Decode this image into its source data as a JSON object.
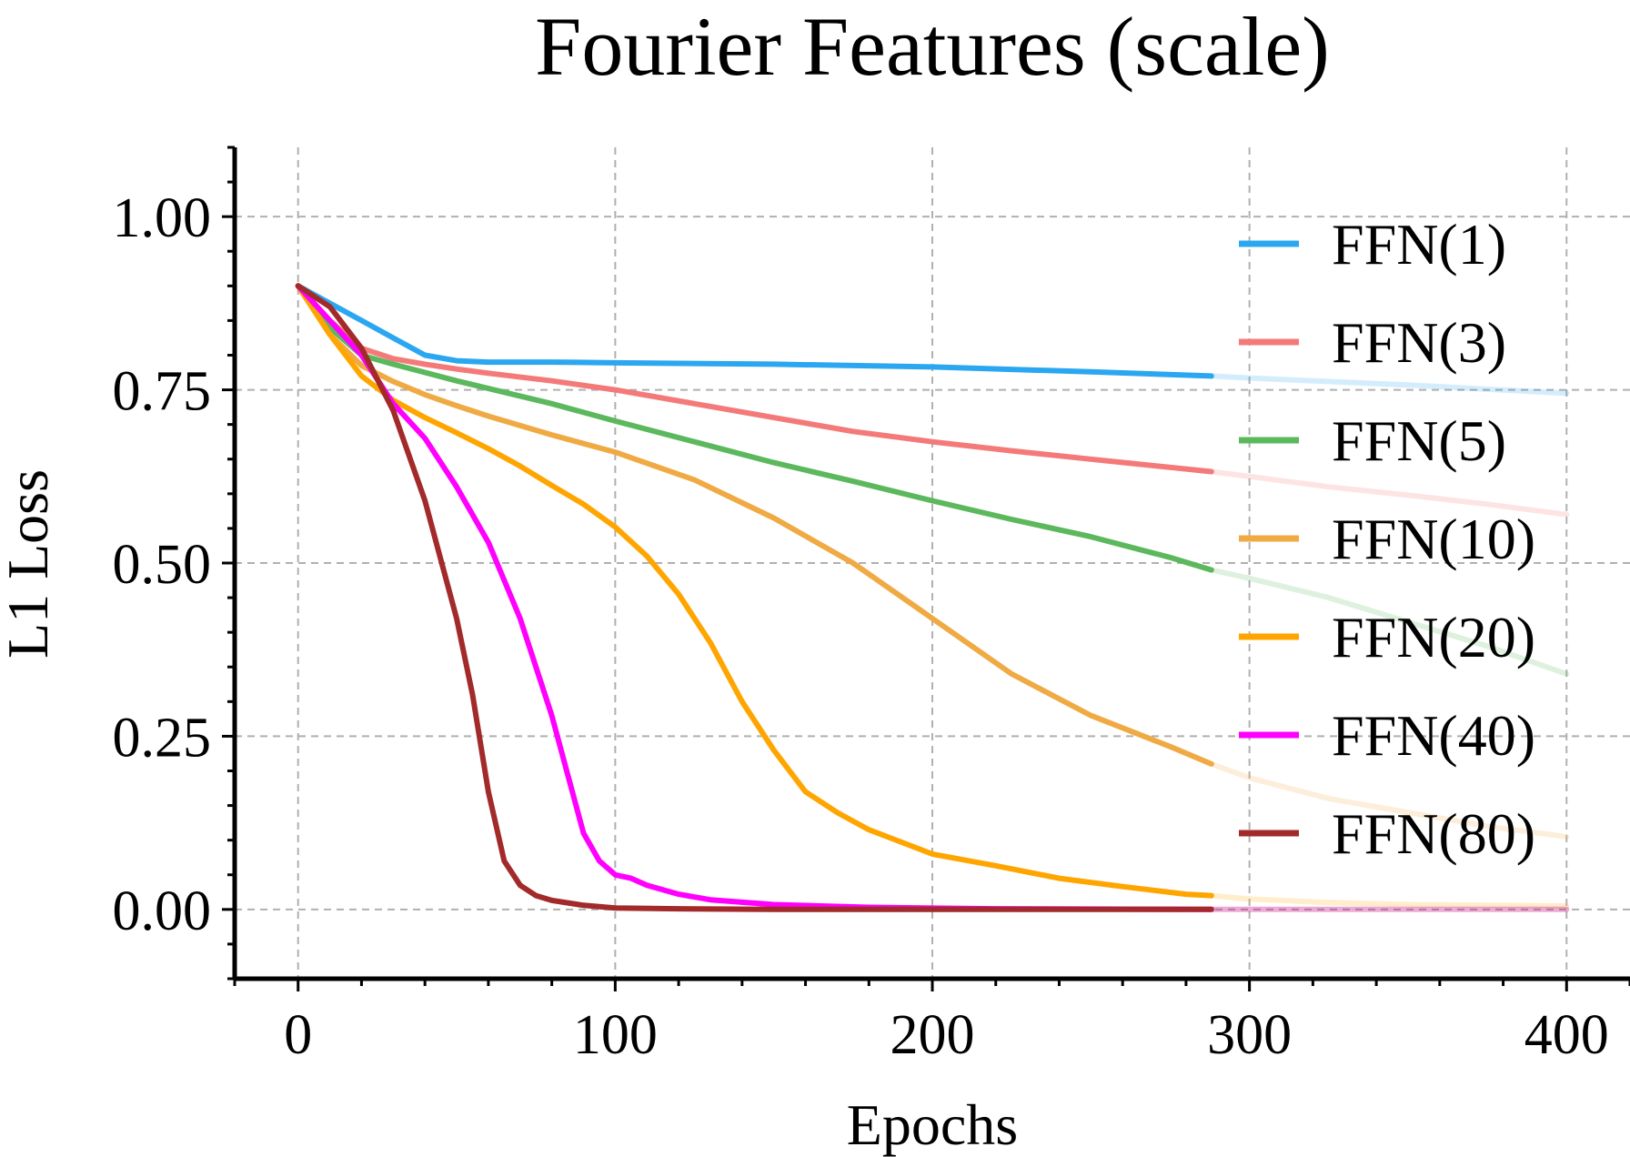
{
  "chart_data": {
    "type": "line",
    "title": "Fourier Features (scale)",
    "xlabel": "Epochs",
    "ylabel": "L1 Loss",
    "xlim": [
      -20,
      420
    ],
    "ylim": [
      -0.1,
      1.1
    ],
    "xticks": [
      0,
      100,
      200,
      300,
      400
    ],
    "xtick_labels": [
      "0",
      "100",
      "200",
      "300",
      "400"
    ],
    "yticks": [
      0.0,
      0.25,
      0.5,
      0.75,
      1.0
    ],
    "ytick_labels": [
      "0.00",
      "0.25",
      "0.50",
      "0.75",
      "1.00"
    ],
    "grid": true,
    "legend_position": "right",
    "faded_after_x": 288,
    "series": [
      {
        "name": "FFN(1)",
        "color": "#2aa7f0",
        "x": [
          0,
          10,
          20,
          30,
          40,
          50,
          60,
          80,
          100,
          150,
          200,
          250,
          288,
          300,
          350,
          400
        ],
        "y": [
          0.9,
          0.875,
          0.85,
          0.825,
          0.8,
          0.792,
          0.79,
          0.79,
          0.789,
          0.787,
          0.783,
          0.776,
          0.77,
          0.767,
          0.757,
          0.745
        ]
      },
      {
        "name": "FFN(3)",
        "color": "#f47a7a",
        "x": [
          0,
          10,
          20,
          30,
          40,
          50,
          60,
          80,
          100,
          125,
          150,
          175,
          200,
          225,
          250,
          288,
          300,
          325,
          350,
          375,
          400
        ],
        "y": [
          0.9,
          0.85,
          0.81,
          0.795,
          0.787,
          0.78,
          0.774,
          0.763,
          0.75,
          0.73,
          0.71,
          0.69,
          0.675,
          0.662,
          0.65,
          0.632,
          0.625,
          0.61,
          0.598,
          0.585,
          0.57
        ]
      },
      {
        "name": "FFN(5)",
        "color": "#5cb85c",
        "x": [
          0,
          10,
          20,
          30,
          40,
          50,
          60,
          80,
          100,
          125,
          150,
          175,
          200,
          225,
          250,
          275,
          288,
          300,
          325,
          350,
          375,
          400
        ],
        "y": [
          0.9,
          0.84,
          0.8,
          0.787,
          0.775,
          0.763,
          0.752,
          0.73,
          0.705,
          0.675,
          0.645,
          0.618,
          0.59,
          0.563,
          0.538,
          0.508,
          0.49,
          0.478,
          0.45,
          0.415,
          0.38,
          0.34
        ]
      },
      {
        "name": "FFN(10)",
        "color": "#efaa44",
        "x": [
          0,
          10,
          20,
          30,
          40,
          50,
          60,
          80,
          100,
          125,
          150,
          175,
          200,
          225,
          250,
          275,
          288,
          300,
          325,
          350,
          375,
          400
        ],
        "y": [
          0.9,
          0.83,
          0.785,
          0.762,
          0.743,
          0.727,
          0.712,
          0.685,
          0.66,
          0.62,
          0.565,
          0.5,
          0.42,
          0.34,
          0.28,
          0.235,
          0.21,
          0.19,
          0.16,
          0.14,
          0.12,
          0.105
        ]
      },
      {
        "name": "FFN(20)",
        "color": "#ffa500",
        "x": [
          0,
          10,
          20,
          30,
          40,
          50,
          60,
          70,
          80,
          90,
          100,
          110,
          120,
          130,
          140,
          150,
          160,
          170,
          180,
          200,
          220,
          240,
          260,
          280,
          288,
          300,
          325,
          350,
          400
        ],
        "y": [
          0.9,
          0.83,
          0.77,
          0.735,
          0.71,
          0.688,
          0.665,
          0.64,
          0.612,
          0.585,
          0.552,
          0.51,
          0.455,
          0.385,
          0.3,
          0.23,
          0.17,
          0.14,
          0.115,
          0.08,
          0.063,
          0.045,
          0.033,
          0.022,
          0.02,
          0.015,
          0.01,
          0.007,
          0.005
        ]
      },
      {
        "name": "FFN(40)",
        "color": "#ff00ff",
        "x": [
          0,
          10,
          20,
          30,
          40,
          50,
          60,
          70,
          80,
          90,
          95,
          100,
          105,
          110,
          120,
          130,
          150,
          180,
          220,
          288,
          300,
          350,
          400
        ],
        "y": [
          0.9,
          0.85,
          0.8,
          0.73,
          0.68,
          0.61,
          0.53,
          0.42,
          0.28,
          0.11,
          0.07,
          0.05,
          0.045,
          0.035,
          0.022,
          0.014,
          0.007,
          0.003,
          0.001,
          0.0,
          0.0,
          0.0,
          0.0
        ]
      },
      {
        "name": "FFN(80)",
        "color": "#a22a2a",
        "x": [
          0,
          10,
          20,
          30,
          40,
          50,
          55,
          60,
          65,
          70,
          75,
          80,
          90,
          100,
          120,
          150,
          200,
          288,
          300,
          400
        ],
        "y": [
          0.9,
          0.87,
          0.81,
          0.72,
          0.59,
          0.42,
          0.31,
          0.17,
          0.07,
          0.035,
          0.02,
          0.013,
          0.006,
          0.002,
          0.001,
          0.0,
          0.0,
          0.0,
          0.0,
          0.0
        ]
      }
    ]
  }
}
